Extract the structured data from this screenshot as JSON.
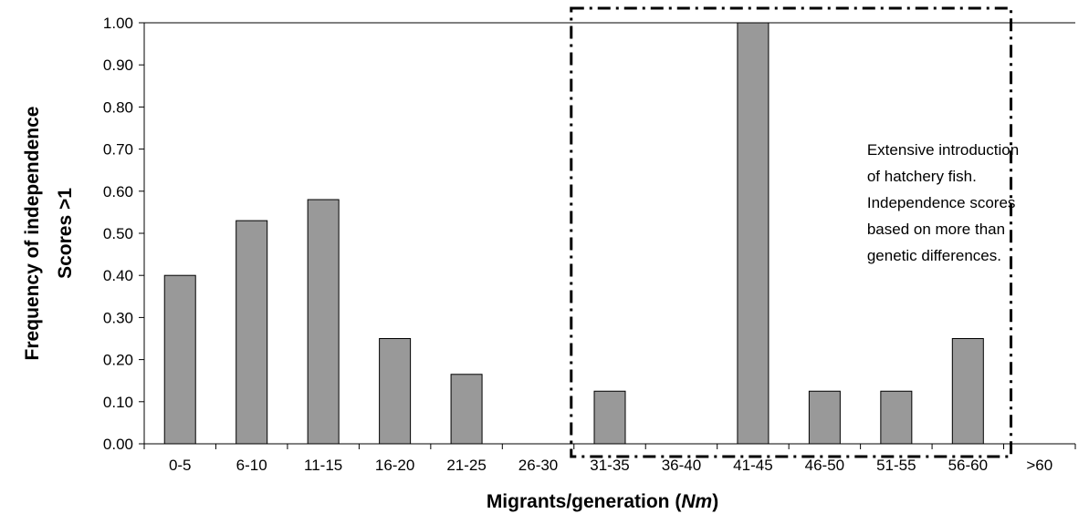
{
  "chart_data": {
    "type": "bar",
    "categories": [
      "0-5",
      "6-10",
      "11-15",
      "16-20",
      "21-25",
      "26-30",
      "31-35",
      "36-40",
      "41-45",
      "46-50",
      "51-55",
      "56-60",
      ">60"
    ],
    "values": [
      0.4,
      0.53,
      0.58,
      0.25,
      0.165,
      0,
      0.125,
      0,
      1.0,
      0.125,
      0.125,
      0.25,
      0
    ],
    "ylim": [
      0,
      1.0
    ],
    "yticks": [
      "0.00",
      "0.10",
      "0.20",
      "0.30",
      "0.40",
      "0.50",
      "0.60",
      "0.70",
      "0.80",
      "0.90",
      "1.00"
    ],
    "ylabel_line1": "Frequency of independence",
    "ylabel_line2": "Scores >1",
    "xlabel_prefix": "Migrants/generation (",
    "xlabel_italic": "Nm",
    "xlabel_suffix": ")",
    "bar_color": "#999999",
    "grid": false,
    "annotation": {
      "lines": [
        "Extensive introduction",
        "of hatchery fish.",
        "Independence scores",
        "based on more than",
        "genetic differences."
      ],
      "box_categories": [
        "31-35",
        "56-60"
      ]
    }
  }
}
